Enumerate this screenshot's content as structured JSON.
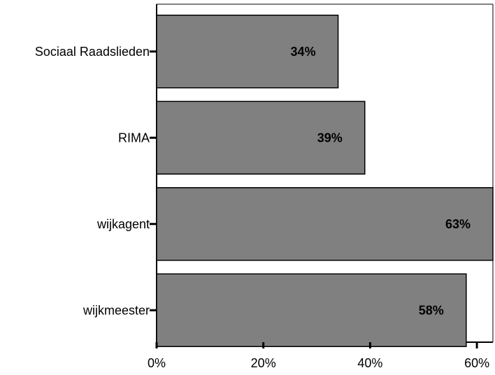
{
  "chart_data": {
    "type": "bar",
    "orientation": "horizontal",
    "categories": [
      "Sociaal Raadslieden",
      "RIMA",
      "wijkagent",
      "wijkmeester"
    ],
    "values": [
      34,
      39,
      63,
      58
    ],
    "value_labels": [
      "34%",
      "39%",
      "63%",
      "58%"
    ],
    "xlim": [
      0,
      63
    ],
    "x_ticks": [
      0,
      20,
      40,
      60
    ],
    "x_tick_labels": [
      "0%",
      "20%",
      "40%",
      "60%"
    ],
    "bar_color": "#808080",
    "grid": false,
    "legend": "none"
  }
}
